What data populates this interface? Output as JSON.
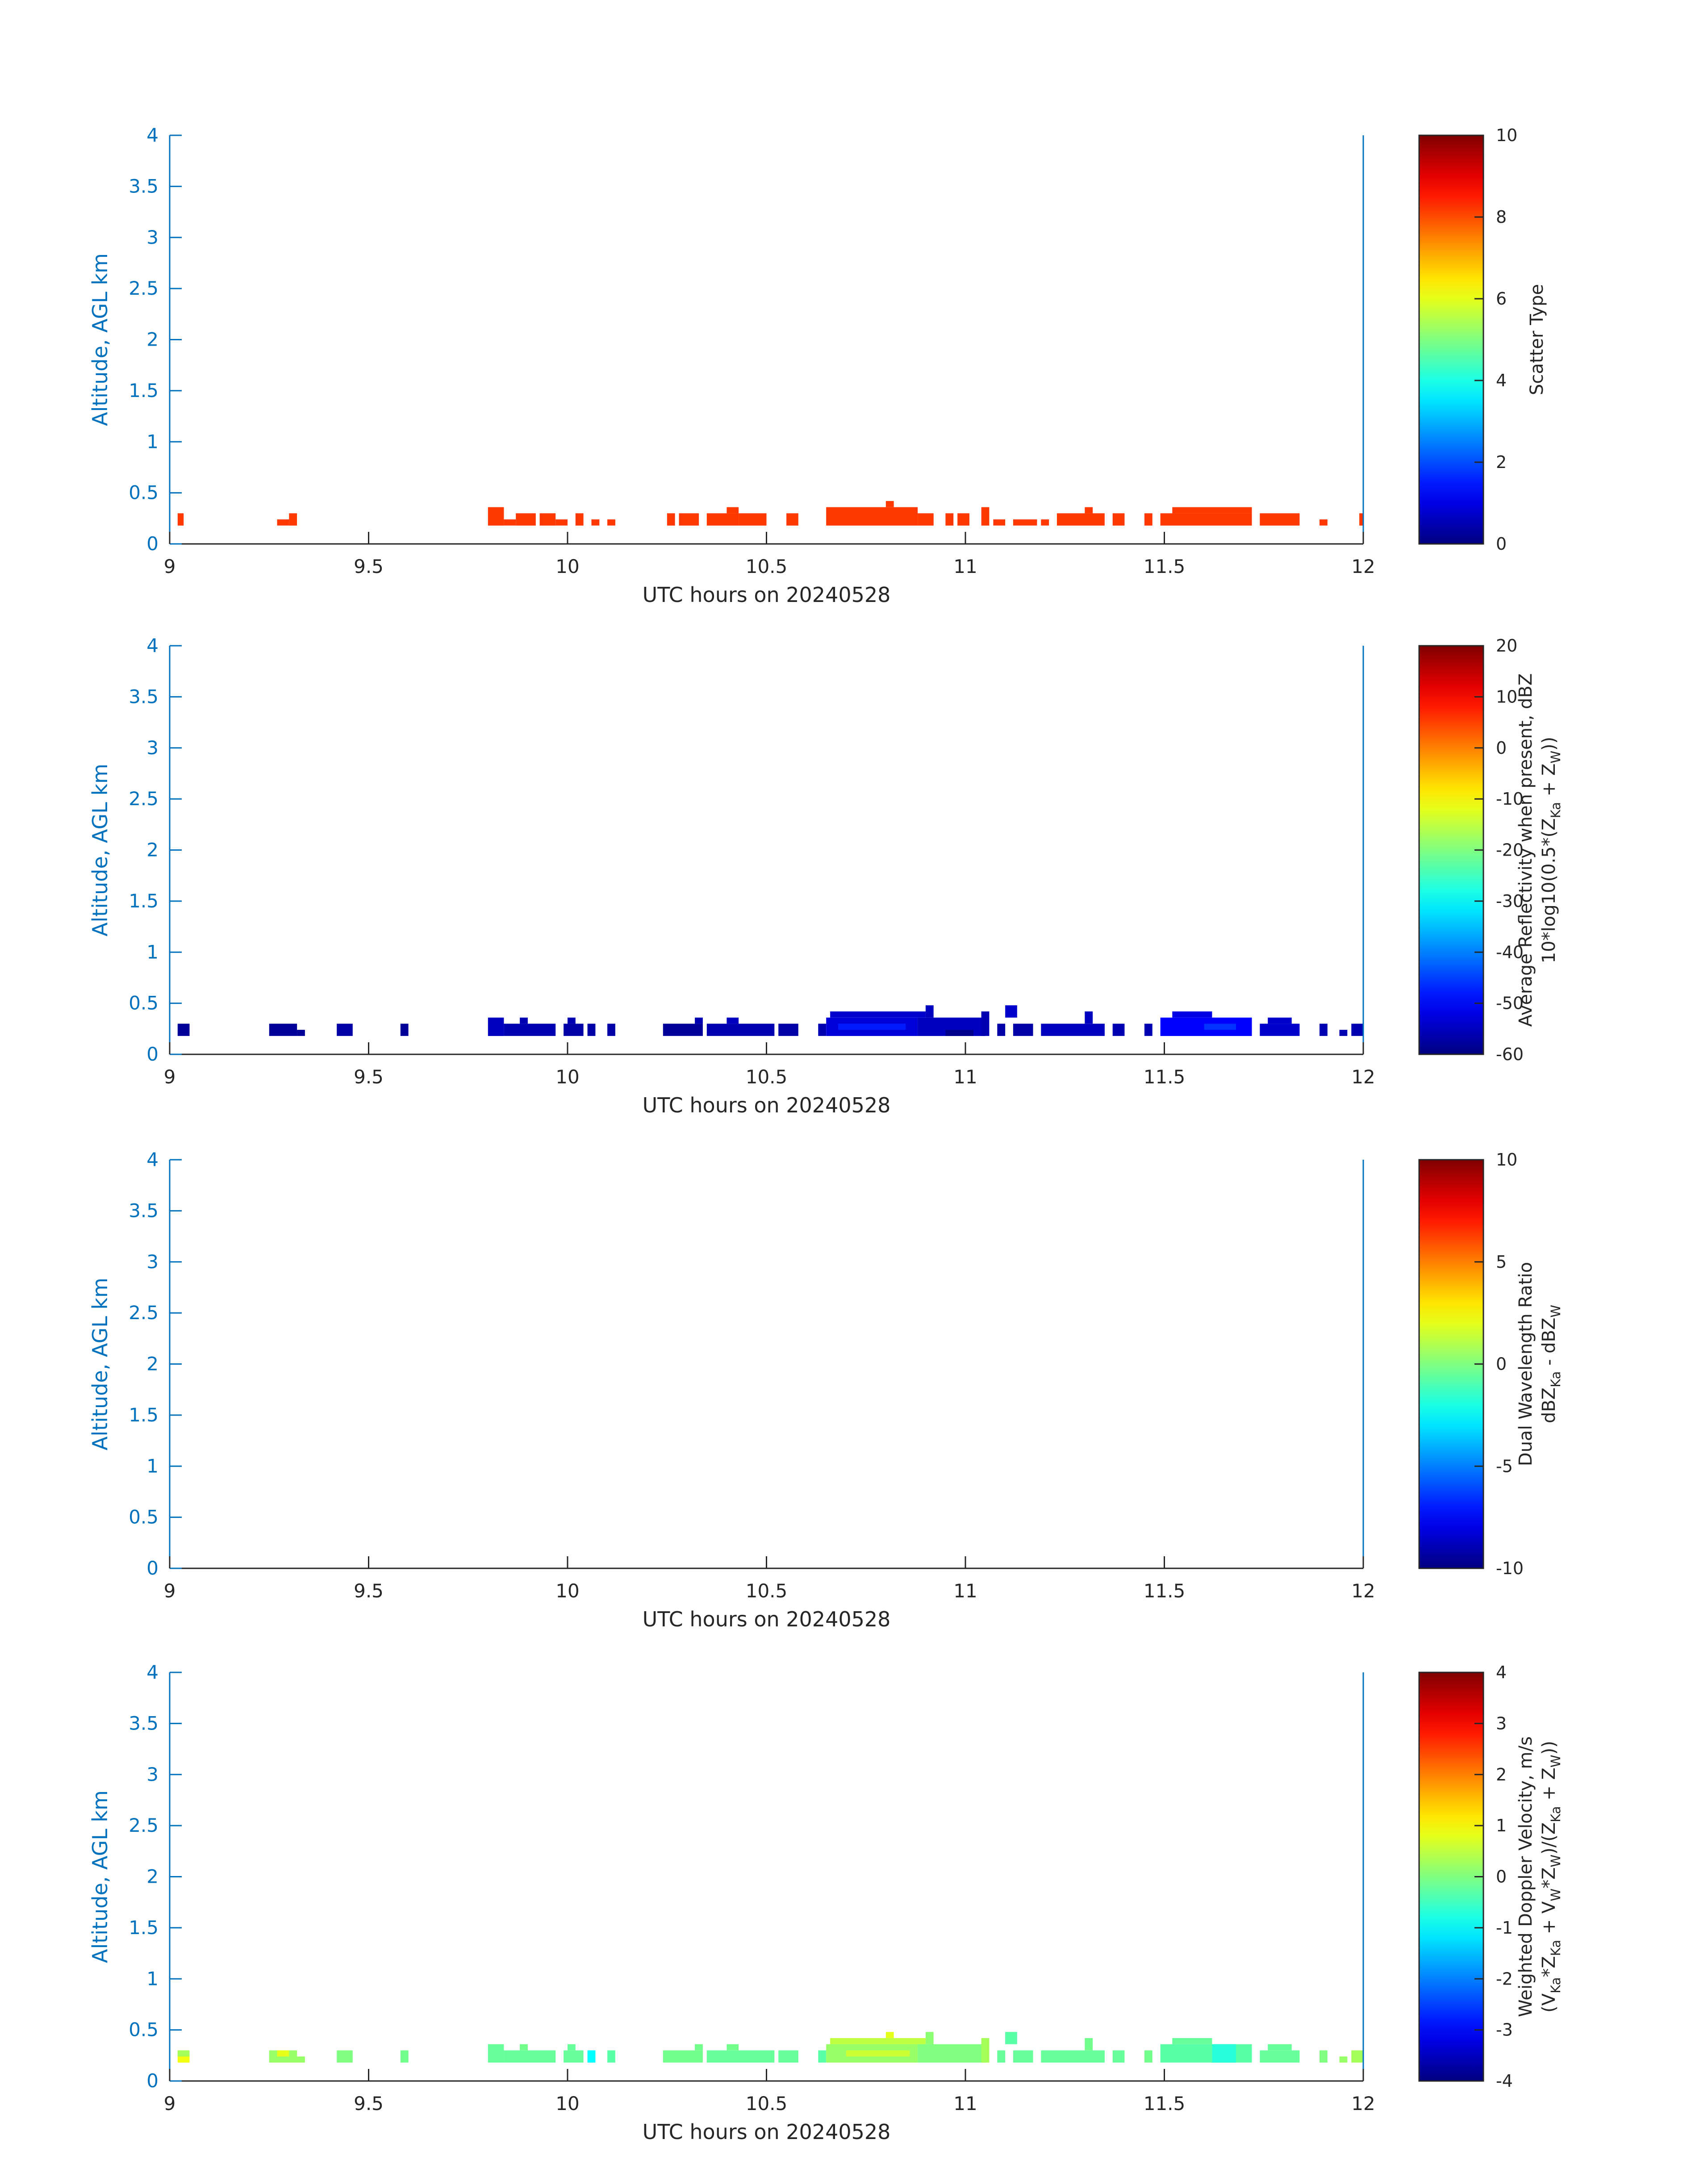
{
  "chart_data": [
    {
      "type": "heatmap",
      "xlabel": "UTC hours on 20240528",
      "ylabel": "Altitude, AGL km",
      "xlim": [
        9,
        12
      ],
      "ylim": [
        0,
        4
      ],
      "xticks": [
        "9",
        "9.5",
        "10",
        "10.5",
        "11",
        "11.5",
        "12"
      ],
      "yticks": [
        "0",
        "0.5",
        "1",
        "1.5",
        "2",
        "2.5",
        "3",
        "3.5",
        "4"
      ],
      "colorbar": {
        "label_lines": [
          "Scatter Type"
        ],
        "range": [
          0,
          10
        ],
        "ticks": [
          "0",
          "2",
          "4",
          "6",
          "8",
          "10"
        ]
      },
      "cells": [
        {
          "x0": 9.02,
          "x1": 9.035,
          "y0": 0.18,
          "y1": 0.3,
          "value": 8.2
        },
        {
          "x0": 9.27,
          "x1": 9.3,
          "y0": 0.18,
          "y1": 0.24,
          "value": 8.2
        },
        {
          "x0": 9.3,
          "x1": 9.32,
          "y0": 0.18,
          "y1": 0.3,
          "value": 8.2
        },
        {
          "x0": 9.8,
          "x1": 9.84,
          "y0": 0.18,
          "y1": 0.36,
          "value": 8.2
        },
        {
          "x0": 9.84,
          "x1": 9.87,
          "y0": 0.18,
          "y1": 0.24,
          "value": 8.2
        },
        {
          "x0": 9.87,
          "x1": 9.92,
          "y0": 0.18,
          "y1": 0.3,
          "value": 8.2
        },
        {
          "x0": 9.93,
          "x1": 9.97,
          "y0": 0.18,
          "y1": 0.3,
          "value": 8.2
        },
        {
          "x0": 9.97,
          "x1": 10.0,
          "y0": 0.18,
          "y1": 0.24,
          "value": 8.2
        },
        {
          "x0": 10.02,
          "x1": 10.04,
          "y0": 0.18,
          "y1": 0.3,
          "value": 8.2
        },
        {
          "x0": 10.06,
          "x1": 10.08,
          "y0": 0.18,
          "y1": 0.24,
          "value": 8.2
        },
        {
          "x0": 10.1,
          "x1": 10.12,
          "y0": 0.18,
          "y1": 0.24,
          "value": 8.2
        },
        {
          "x0": 10.25,
          "x1": 10.27,
          "y0": 0.18,
          "y1": 0.3,
          "value": 8.2
        },
        {
          "x0": 10.28,
          "x1": 10.33,
          "y0": 0.18,
          "y1": 0.3,
          "value": 8.2
        },
        {
          "x0": 10.35,
          "x1": 10.43,
          "y0": 0.18,
          "y1": 0.3,
          "value": 8.2
        },
        {
          "x0": 10.4,
          "x1": 10.43,
          "y0": 0.3,
          "y1": 0.36,
          "value": 8.2
        },
        {
          "x0": 10.43,
          "x1": 10.5,
          "y0": 0.18,
          "y1": 0.3,
          "value": 8.2
        },
        {
          "x0": 10.55,
          "x1": 10.58,
          "y0": 0.18,
          "y1": 0.3,
          "value": 8.2
        },
        {
          "x0": 10.65,
          "x1": 10.88,
          "y0": 0.18,
          "y1": 0.36,
          "value": 8.2
        },
        {
          "x0": 10.8,
          "x1": 10.82,
          "y0": 0.36,
          "y1": 0.42,
          "value": 8.2
        },
        {
          "x0": 10.88,
          "x1": 10.92,
          "y0": 0.18,
          "y1": 0.3,
          "value": 8.2
        },
        {
          "x0": 10.95,
          "x1": 10.97,
          "y0": 0.18,
          "y1": 0.3,
          "value": 8.2
        },
        {
          "x0": 10.98,
          "x1": 11.01,
          "y0": 0.18,
          "y1": 0.3,
          "value": 8.2
        },
        {
          "x0": 11.04,
          "x1": 11.06,
          "y0": 0.18,
          "y1": 0.36,
          "value": 8.2
        },
        {
          "x0": 11.07,
          "x1": 11.1,
          "y0": 0.18,
          "y1": 0.24,
          "value": 8.2
        },
        {
          "x0": 11.12,
          "x1": 11.18,
          "y0": 0.18,
          "y1": 0.24,
          "value": 8.2
        },
        {
          "x0": 11.19,
          "x1": 11.21,
          "y0": 0.18,
          "y1": 0.24,
          "value": 8.2
        },
        {
          "x0": 11.23,
          "x1": 11.35,
          "y0": 0.18,
          "y1": 0.3,
          "value": 8.2
        },
        {
          "x0": 11.3,
          "x1": 11.32,
          "y0": 0.3,
          "y1": 0.36,
          "value": 8.2
        },
        {
          "x0": 11.37,
          "x1": 11.4,
          "y0": 0.18,
          "y1": 0.3,
          "value": 8.2
        },
        {
          "x0": 11.45,
          "x1": 11.47,
          "y0": 0.18,
          "y1": 0.3,
          "value": 8.2
        },
        {
          "x0": 11.49,
          "x1": 11.72,
          "y0": 0.18,
          "y1": 0.3,
          "value": 8.2
        },
        {
          "x0": 11.52,
          "x1": 11.72,
          "y0": 0.3,
          "y1": 0.36,
          "value": 8.2
        },
        {
          "x0": 11.74,
          "x1": 11.84,
          "y0": 0.18,
          "y1": 0.3,
          "value": 8.2
        },
        {
          "x0": 11.89,
          "x1": 11.91,
          "y0": 0.18,
          "y1": 0.24,
          "value": 8.2
        },
        {
          "x0": 11.99,
          "x1": 12.0,
          "y0": 0.18,
          "y1": 0.3,
          "value": 8.2
        }
      ]
    },
    {
      "type": "heatmap",
      "xlabel": "UTC hours on 20240528",
      "ylabel": "Altitude, AGL km",
      "xlim": [
        9,
        12
      ],
      "ylim": [
        0,
        4
      ],
      "xticks": [
        "9",
        "9.5",
        "10",
        "10.5",
        "11",
        "11.5",
        "12"
      ],
      "yticks": [
        "0",
        "0.5",
        "1",
        "1.5",
        "2",
        "2.5",
        "3",
        "3.5",
        "4"
      ],
      "colorbar": {
        "label_lines": [
          "Average Reflectivity when present, dBZ",
          "10*log10(0.5*(Z_Ka + Z_W))"
        ],
        "range": [
          -60,
          20
        ],
        "ticks": [
          "-60",
          "-50",
          "-40",
          "-30",
          "-20",
          "-10",
          "0",
          "10",
          "20"
        ]
      },
      "cells": [
        {
          "x0": 9.02,
          "x1": 9.05,
          "y0": 0.18,
          "y1": 0.3,
          "value": -58
        },
        {
          "x0": 9.25,
          "x1": 9.32,
          "y0": 0.18,
          "y1": 0.3,
          "value": -58
        },
        {
          "x0": 9.32,
          "x1": 9.34,
          "y0": 0.18,
          "y1": 0.24,
          "value": -58
        },
        {
          "x0": 9.42,
          "x1": 9.46,
          "y0": 0.18,
          "y1": 0.3,
          "value": -57
        },
        {
          "x0": 9.58,
          "x1": 9.6,
          "y0": 0.18,
          "y1": 0.3,
          "value": -58
        },
        {
          "x0": 9.8,
          "x1": 9.84,
          "y0": 0.18,
          "y1": 0.36,
          "value": -55
        },
        {
          "x0": 9.84,
          "x1": 9.97,
          "y0": 0.18,
          "y1": 0.3,
          "value": -56
        },
        {
          "x0": 9.88,
          "x1": 9.9,
          "y0": 0.3,
          "y1": 0.36,
          "value": -56
        },
        {
          "x0": 9.99,
          "x1": 10.04,
          "y0": 0.18,
          "y1": 0.3,
          "value": -57
        },
        {
          "x0": 10.0,
          "x1": 10.02,
          "y0": 0.3,
          "y1": 0.36,
          "value": -56
        },
        {
          "x0": 10.05,
          "x1": 10.07,
          "y0": 0.18,
          "y1": 0.3,
          "value": -57
        },
        {
          "x0": 10.1,
          "x1": 10.12,
          "y0": 0.18,
          "y1": 0.3,
          "value": -57
        },
        {
          "x0": 10.24,
          "x1": 10.34,
          "y0": 0.18,
          "y1": 0.3,
          "value": -58
        },
        {
          "x0": 10.32,
          "x1": 10.34,
          "y0": 0.3,
          "y1": 0.36,
          "value": -56
        },
        {
          "x0": 10.35,
          "x1": 10.52,
          "y0": 0.18,
          "y1": 0.3,
          "value": -56
        },
        {
          "x0": 10.4,
          "x1": 10.43,
          "y0": 0.3,
          "y1": 0.36,
          "value": -55
        },
        {
          "x0": 10.53,
          "x1": 10.58,
          "y0": 0.18,
          "y1": 0.3,
          "value": -57
        },
        {
          "x0": 10.63,
          "x1": 10.65,
          "y0": 0.18,
          "y1": 0.3,
          "value": -56
        },
        {
          "x0": 10.65,
          "x1": 10.88,
          "y0": 0.18,
          "y1": 0.36,
          "value": -53
        },
        {
          "x0": 10.68,
          "x1": 10.85,
          "y0": 0.24,
          "y1": 0.3,
          "value": -48
        },
        {
          "x0": 10.66,
          "x1": 10.9,
          "y0": 0.36,
          "y1": 0.42,
          "value": -54
        },
        {
          "x0": 10.88,
          "x1": 11.05,
          "y0": 0.18,
          "y1": 0.36,
          "value": -55
        },
        {
          "x0": 10.9,
          "x1": 10.92,
          "y0": 0.36,
          "y1": 0.48,
          "value": -55
        },
        {
          "x0": 10.95,
          "x1": 11.02,
          "y0": 0.18,
          "y1": 0.24,
          "value": -59
        },
        {
          "x0": 11.04,
          "x1": 11.06,
          "y0": 0.18,
          "y1": 0.42,
          "value": -56
        },
        {
          "x0": 11.08,
          "x1": 11.1,
          "y0": 0.18,
          "y1": 0.3,
          "value": -57
        },
        {
          "x0": 11.1,
          "x1": 11.13,
          "y0": 0.36,
          "y1": 0.48,
          "value": -54
        },
        {
          "x0": 11.12,
          "x1": 11.17,
          "y0": 0.18,
          "y1": 0.3,
          "value": -57
        },
        {
          "x0": 11.19,
          "x1": 11.35,
          "y0": 0.18,
          "y1": 0.3,
          "value": -55
        },
        {
          "x0": 11.3,
          "x1": 11.32,
          "y0": 0.3,
          "y1": 0.42,
          "value": -55
        },
        {
          "x0": 11.37,
          "x1": 11.4,
          "y0": 0.18,
          "y1": 0.3,
          "value": -56
        },
        {
          "x0": 11.45,
          "x1": 11.47,
          "y0": 0.18,
          "y1": 0.3,
          "value": -56
        },
        {
          "x0": 11.49,
          "x1": 11.72,
          "y0": 0.18,
          "y1": 0.36,
          "value": -50
        },
        {
          "x0": 11.52,
          "x1": 11.62,
          "y0": 0.36,
          "y1": 0.42,
          "value": -52
        },
        {
          "x0": 11.6,
          "x1": 11.68,
          "y0": 0.24,
          "y1": 0.3,
          "value": -46
        },
        {
          "x0": 11.74,
          "x1": 11.84,
          "y0": 0.18,
          "y1": 0.3,
          "value": -54
        },
        {
          "x0": 11.76,
          "x1": 11.82,
          "y0": 0.3,
          "y1": 0.36,
          "value": -54
        },
        {
          "x0": 11.89,
          "x1": 11.91,
          "y0": 0.18,
          "y1": 0.3,
          "value": -56
        },
        {
          "x0": 11.94,
          "x1": 11.96,
          "y0": 0.18,
          "y1": 0.24,
          "value": -56
        },
        {
          "x0": 11.97,
          "x1": 12.0,
          "y0": 0.18,
          "y1": 0.3,
          "value": -56
        }
      ]
    },
    {
      "type": "heatmap",
      "xlabel": "UTC hours on 20240528",
      "ylabel": "Altitude, AGL km",
      "xlim": [
        9,
        12
      ],
      "ylim": [
        0,
        4
      ],
      "xticks": [
        "9",
        "9.5",
        "10",
        "10.5",
        "11",
        "11.5",
        "12"
      ],
      "yticks": [
        "0",
        "0.5",
        "1",
        "1.5",
        "2",
        "2.5",
        "3",
        "3.5",
        "4"
      ],
      "colorbar": {
        "label_lines": [
          "Dual Wavelength Ratio",
          "dBZ_Ka - dBZ_W"
        ],
        "range": [
          -10,
          10
        ],
        "ticks": [
          "-10",
          "-5",
          "0",
          "5",
          "10"
        ]
      },
      "cells": []
    },
    {
      "type": "heatmap",
      "xlabel": "UTC hours on 20240528",
      "ylabel": "Altitude, AGL km",
      "xlim": [
        9,
        12
      ],
      "ylim": [
        0,
        4
      ],
      "xticks": [
        "9",
        "9.5",
        "10",
        "10.5",
        "11",
        "11.5",
        "12"
      ],
      "yticks": [
        "0",
        "0.5",
        "1",
        "1.5",
        "2",
        "2.5",
        "3",
        "3.5",
        "4"
      ],
      "colorbar": {
        "label_lines": [
          "Weighted Doppler Velocity, m/s",
          "(V_Ka*Z_Ka + V_W*Z_W)/(Z_Ka + Z_W))"
        ],
        "range": [
          -4,
          4
        ],
        "ticks": [
          "-4",
          "-3",
          "-2",
          "-1",
          "0",
          "1",
          "2",
          "3",
          "4"
        ]
      },
      "cells": [
        {
          "x0": 9.02,
          "x1": 9.05,
          "y0": 0.18,
          "y1": 0.3,
          "value": 0.9
        },
        {
          "x0": 9.02,
          "x1": 9.05,
          "y0": 0.24,
          "y1": 0.3,
          "value": 0.3
        },
        {
          "x0": 9.25,
          "x1": 9.32,
          "y0": 0.18,
          "y1": 0.3,
          "value": 0.2
        },
        {
          "x0": 9.27,
          "x1": 9.3,
          "y0": 0.24,
          "y1": 0.3,
          "value": 0.8
        },
        {
          "x0": 9.32,
          "x1": 9.34,
          "y0": 0.18,
          "y1": 0.24,
          "value": 0.2
        },
        {
          "x0": 9.42,
          "x1": 9.46,
          "y0": 0.18,
          "y1": 0.3,
          "value": 0.0
        },
        {
          "x0": 9.58,
          "x1": 9.6,
          "y0": 0.18,
          "y1": 0.3,
          "value": -0.1
        },
        {
          "x0": 9.8,
          "x1": 9.84,
          "y0": 0.18,
          "y1": 0.36,
          "value": -0.2
        },
        {
          "x0": 9.84,
          "x1": 9.97,
          "y0": 0.18,
          "y1": 0.3,
          "value": -0.2
        },
        {
          "x0": 9.88,
          "x1": 9.9,
          "y0": 0.3,
          "y1": 0.36,
          "value": -0.1
        },
        {
          "x0": 9.99,
          "x1": 10.04,
          "y0": 0.18,
          "y1": 0.3,
          "value": -0.2
        },
        {
          "x0": 10.0,
          "x1": 10.02,
          "y0": 0.3,
          "y1": 0.36,
          "value": -0.2
        },
        {
          "x0": 10.05,
          "x1": 10.07,
          "y0": 0.18,
          "y1": 0.3,
          "value": -1.0
        },
        {
          "x0": 10.1,
          "x1": 10.12,
          "y0": 0.18,
          "y1": 0.3,
          "value": -0.3
        },
        {
          "x0": 10.24,
          "x1": 10.34,
          "y0": 0.18,
          "y1": 0.3,
          "value": -0.1
        },
        {
          "x0": 10.32,
          "x1": 10.34,
          "y0": 0.3,
          "y1": 0.36,
          "value": -0.1
        },
        {
          "x0": 10.35,
          "x1": 10.52,
          "y0": 0.18,
          "y1": 0.3,
          "value": -0.2
        },
        {
          "x0": 10.4,
          "x1": 10.43,
          "y0": 0.3,
          "y1": 0.36,
          "value": -0.1
        },
        {
          "x0": 10.53,
          "x1": 10.58,
          "y0": 0.18,
          "y1": 0.3,
          "value": -0.2
        },
        {
          "x0": 10.63,
          "x1": 10.65,
          "y0": 0.18,
          "y1": 0.3,
          "value": -0.3
        },
        {
          "x0": 10.65,
          "x1": 10.88,
          "y0": 0.18,
          "y1": 0.36,
          "value": 0.2
        },
        {
          "x0": 10.7,
          "x1": 10.86,
          "y0": 0.24,
          "y1": 0.3,
          "value": 0.6
        },
        {
          "x0": 10.66,
          "x1": 10.9,
          "y0": 0.36,
          "y1": 0.42,
          "value": 0.5
        },
        {
          "x0": 10.8,
          "x1": 10.82,
          "y0": 0.42,
          "y1": 0.48,
          "value": 0.8
        },
        {
          "x0": 10.88,
          "x1": 11.05,
          "y0": 0.18,
          "y1": 0.36,
          "value": 0.0
        },
        {
          "x0": 10.9,
          "x1": 10.92,
          "y0": 0.36,
          "y1": 0.48,
          "value": 0.1
        },
        {
          "x0": 11.04,
          "x1": 11.06,
          "y0": 0.18,
          "y1": 0.42,
          "value": 0.3
        },
        {
          "x0": 11.08,
          "x1": 11.1,
          "y0": 0.18,
          "y1": 0.3,
          "value": -0.2
        },
        {
          "x0": 11.1,
          "x1": 11.13,
          "y0": 0.36,
          "y1": 0.48,
          "value": -0.3
        },
        {
          "x0": 11.12,
          "x1": 11.17,
          "y0": 0.18,
          "y1": 0.3,
          "value": -0.2
        },
        {
          "x0": 11.19,
          "x1": 11.35,
          "y0": 0.18,
          "y1": 0.3,
          "value": -0.2
        },
        {
          "x0": 11.3,
          "x1": 11.32,
          "y0": 0.3,
          "y1": 0.42,
          "value": -0.1
        },
        {
          "x0": 11.37,
          "x1": 11.4,
          "y0": 0.18,
          "y1": 0.3,
          "value": -0.2
        },
        {
          "x0": 11.45,
          "x1": 11.47,
          "y0": 0.18,
          "y1": 0.3,
          "value": -0.1
        },
        {
          "x0": 11.49,
          "x1": 11.72,
          "y0": 0.18,
          "y1": 0.36,
          "value": -0.3
        },
        {
          "x0": 11.52,
          "x1": 11.62,
          "y0": 0.36,
          "y1": 0.42,
          "value": -0.2
        },
        {
          "x0": 11.62,
          "x1": 11.68,
          "y0": 0.18,
          "y1": 0.36,
          "value": -0.7
        },
        {
          "x0": 11.74,
          "x1": 11.84,
          "y0": 0.18,
          "y1": 0.3,
          "value": -0.2
        },
        {
          "x0": 11.76,
          "x1": 11.82,
          "y0": 0.3,
          "y1": 0.36,
          "value": -0.2
        },
        {
          "x0": 11.89,
          "x1": 11.91,
          "y0": 0.18,
          "y1": 0.3,
          "value": 0.0
        },
        {
          "x0": 11.94,
          "x1": 11.96,
          "y0": 0.18,
          "y1": 0.24,
          "value": 0.2
        },
        {
          "x0": 11.97,
          "x1": 12.0,
          "y0": 0.18,
          "y1": 0.3,
          "value": 0.3
        }
      ]
    }
  ]
}
